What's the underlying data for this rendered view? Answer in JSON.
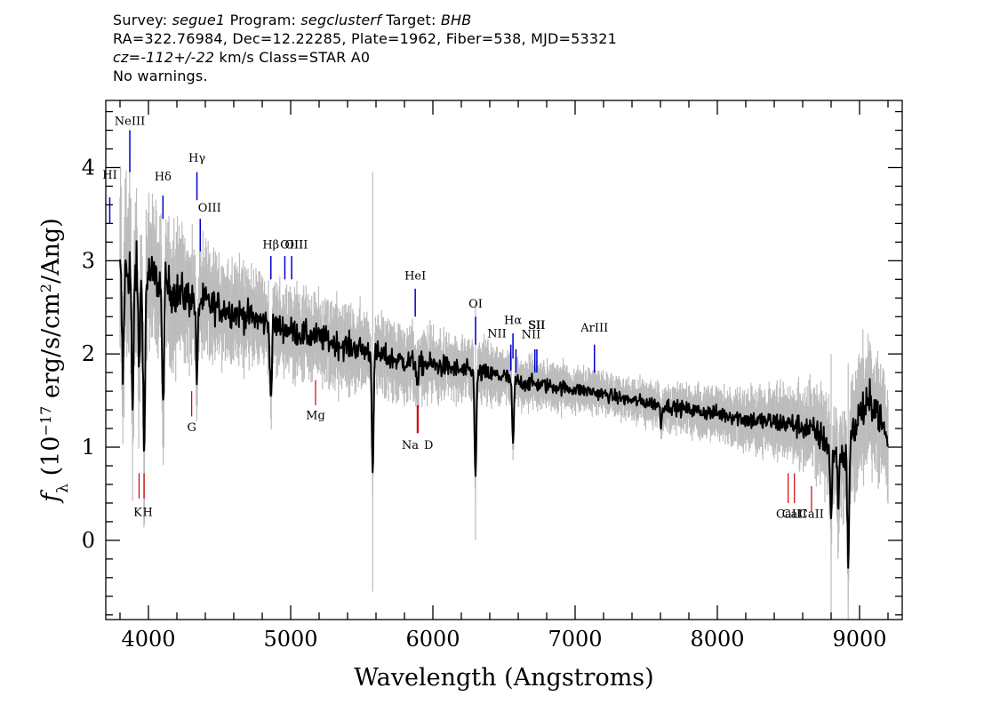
{
  "header": {
    "survey_label": "Survey:",
    "survey": "segue1",
    "program_label": "Program:",
    "program": "segclusterf",
    "target_label": "Target:",
    "target": "BHB",
    "line2": "RA=322.76984, Dec=12.22285, Plate=1962, Fiber=538, MJD=53321",
    "cz_label": "cz=",
    "cz_value": "-112+/-22",
    "cz_rest": "km/s Class=STAR A0",
    "warnings": "No warnings."
  },
  "chart_data": {
    "type": "line",
    "title": "",
    "xlabel": "Wavelength (Angstroms)",
    "ylabel": "f_λ (10^-17 erg/s/cm^2/Ang)",
    "xlim": [
      3700,
      9300
    ],
    "ylim": [
      -0.85,
      4.72
    ],
    "x_ticks": [
      4000,
      5000,
      6000,
      7000,
      8000,
      9000
    ],
    "y_ticks": [
      0,
      1,
      2,
      3,
      4
    ],
    "grid": false,
    "series": [
      {
        "color": "#000000",
        "style": "flux",
        "x": [
          3800,
          3850,
          3900,
          3950,
          4000,
          4100,
          4200,
          4300,
          4400,
          4500,
          4600,
          4700,
          4800,
          4900,
          5000,
          5100,
          5200,
          5300,
          5400,
          5500,
          5600,
          5700,
          5800,
          5900,
          6000,
          6100,
          6200,
          6300,
          6400,
          6500,
          6600,
          6700,
          6800,
          6900,
          7000,
          7100,
          7200,
          7300,
          7400,
          7500,
          7600,
          7700,
          7800,
          7900,
          8000,
          8100,
          8200,
          8300,
          8400,
          8500,
          8600,
          8700,
          8800,
          8900,
          9000,
          9100,
          9200
        ],
        "y": [
          2.85,
          2.9,
          2.95,
          2.75,
          2.85,
          2.75,
          2.65,
          2.6,
          2.55,
          2.5,
          2.45,
          2.4,
          2.35,
          2.3,
          2.25,
          2.2,
          2.18,
          2.12,
          2.08,
          2.05,
          2.0,
          1.95,
          1.92,
          1.9,
          1.88,
          1.86,
          1.82,
          1.8,
          1.78,
          1.76,
          1.7,
          1.68,
          1.66,
          1.64,
          1.62,
          1.6,
          1.57,
          1.53,
          1.5,
          1.48,
          1.46,
          1.43,
          1.4,
          1.38,
          1.36,
          1.34,
          1.3,
          1.28,
          1.27,
          1.25,
          1.22,
          1.15,
          1.0,
          0.9,
          1.35,
          1.5,
          1.05
        ]
      },
      {
        "color": "#bcbcbc",
        "style": "error",
        "x": [
          3800,
          4000,
          4500,
          5000,
          5500,
          6000,
          6500,
          7000,
          7500,
          8000,
          8500,
          9000,
          9200
        ],
        "y": [
          0.7,
          0.55,
          0.35,
          0.3,
          0.28,
          0.25,
          0.2,
          0.15,
          0.15,
          0.18,
          0.25,
          0.45,
          0.4
        ]
      }
    ],
    "absorption_features": [
      {
        "x": 3820,
        "depth": 1.1
      },
      {
        "x": 3889,
        "depth": 1.7
      },
      {
        "x": 3934,
        "depth": 0.9
      },
      {
        "x": 3970,
        "depth": 1.9
      },
      {
        "x": 4102,
        "depth": 1.4
      },
      {
        "x": 4341,
        "depth": 0.9
      },
      {
        "x": 4861,
        "depth": 0.8
      },
      {
        "x": 5577,
        "depth": 1.2
      },
      {
        "x": 5893,
        "depth": 0.25
      },
      {
        "x": 6300,
        "depth": 1.1
      },
      {
        "x": 6563,
        "depth": 0.7
      },
      {
        "x": 7605,
        "depth": 0.2
      },
      {
        "x": 8800,
        "depth": 0.8
      },
      {
        "x": 8850,
        "depth": 0.5
      },
      {
        "x": 8920,
        "depth": 1.2
      }
    ],
    "sky_spikes": [
      {
        "x": 5577,
        "lo": -0.55,
        "hi": 3.95
      },
      {
        "x": 6300,
        "lo": 0.0,
        "hi": 2.55
      },
      {
        "x": 8800,
        "lo": -0.85,
        "hi": 2.0
      },
      {
        "x": 8920,
        "lo": -0.85,
        "hi": 1.9
      }
    ],
    "emission_labels": [
      {
        "text": "NeIII",
        "x": 3869,
        "y0": 3.95,
        "y1": 4.4,
        "labx": 3869,
        "laby": 4.46
      },
      {
        "text": "HI",
        "x": 3728,
        "y0": 3.4,
        "y1": 3.68,
        "labx": 3728,
        "laby": 3.88
      },
      {
        "text": "Hδ",
        "x": 4102,
        "y0": 3.45,
        "y1": 3.7,
        "labx": 4102,
        "laby": 3.86
      },
      {
        "text": "Hγ",
        "x": 4341,
        "y0": 3.65,
        "y1": 3.95,
        "labx": 4341,
        "laby": 4.06
      },
      {
        "text": "OIII",
        "x": 4364,
        "y0": 3.1,
        "y1": 3.45,
        "labx": 4430,
        "laby": 3.53
      },
      {
        "text": "Hβ",
        "x": 4861,
        "y0": 2.8,
        "y1": 3.05,
        "labx": 4861,
        "laby": 3.13
      },
      {
        "text": "OIII",
        "x": 4959,
        "y0": 2.8,
        "y1": 3.05,
        "labx": 5040,
        "laby": 3.13
      },
      {
        "text": "OIII",
        "x": 5007,
        "y0": 2.8,
        "y1": 3.05,
        "labx": 5007,
        "laby": 3.13
      },
      {
        "text": "HeI",
        "x": 5876,
        "y0": 2.4,
        "y1": 2.7,
        "labx": 5876,
        "laby": 2.8
      },
      {
        "text": "OI",
        "x": 6300,
        "y0": 2.1,
        "y1": 2.4,
        "labx": 6300,
        "laby": 2.5
      },
      {
        "text": "NII",
        "x": 6548,
        "y0": 1.82,
        "y1": 2.1,
        "labx": 6450,
        "laby": 2.18
      },
      {
        "text": "Hα",
        "x": 6563,
        "y0": 1.95,
        "y1": 2.22,
        "labx": 6563,
        "laby": 2.32
      },
      {
        "text": "NII",
        "x": 6584,
        "y0": 1.8,
        "y1": 2.05,
        "labx": 6690,
        "laby": 2.17
      },
      {
        "text": "SII",
        "x": 6717,
        "y0": 1.8,
        "y1": 2.05,
        "labx": 6728,
        "laby": 2.27
      },
      {
        "text": "SII",
        "x": 6731,
        "y0": 1.8,
        "y1": 2.05,
        "labx": 6731,
        "laby": 2.27
      },
      {
        "text": "ArIII",
        "x": 7136,
        "y0": 1.8,
        "y1": 2.1,
        "labx": 7136,
        "laby": 2.24
      }
    ],
    "absorption_labels": [
      {
        "text": "K",
        "x": 3934,
        "y0": 0.45,
        "y1": 0.72,
        "labx": 3925,
        "laby": 0.26
      },
      {
        "text": "H",
        "x": 3969,
        "y0": 0.45,
        "y1": 0.72,
        "labx": 3995,
        "laby": 0.26
      },
      {
        "text": "G",
        "x": 4304,
        "y0": 1.33,
        "y1": 1.6,
        "labx": 4304,
        "laby": 1.17
      },
      {
        "text": "Mg",
        "x": 5175,
        "y0": 1.45,
        "y1": 1.72,
        "labx": 5175,
        "laby": 1.3
      },
      {
        "text": "Na",
        "x": 5890,
        "y0": 1.15,
        "y1": 1.45,
        "labx": 5840,
        "laby": 0.98
      },
      {
        "text": "D",
        "x": 5896,
        "y0": 1.15,
        "y1": 1.45,
        "labx": 5970,
        "laby": 0.98
      },
      {
        "text": "CaII",
        "x": 8498,
        "y0": 0.4,
        "y1": 0.72,
        "labx": 8500,
        "laby": 0.24
      },
      {
        "text": "CaII",
        "x": 8542,
        "y0": 0.4,
        "y1": 0.72,
        "labx": 8542,
        "laby": 0.24
      },
      {
        "text": "CaII",
        "x": 8662,
        "y0": 0.3,
        "y1": 0.58,
        "labx": 8662,
        "laby": 0.24
      }
    ]
  }
}
